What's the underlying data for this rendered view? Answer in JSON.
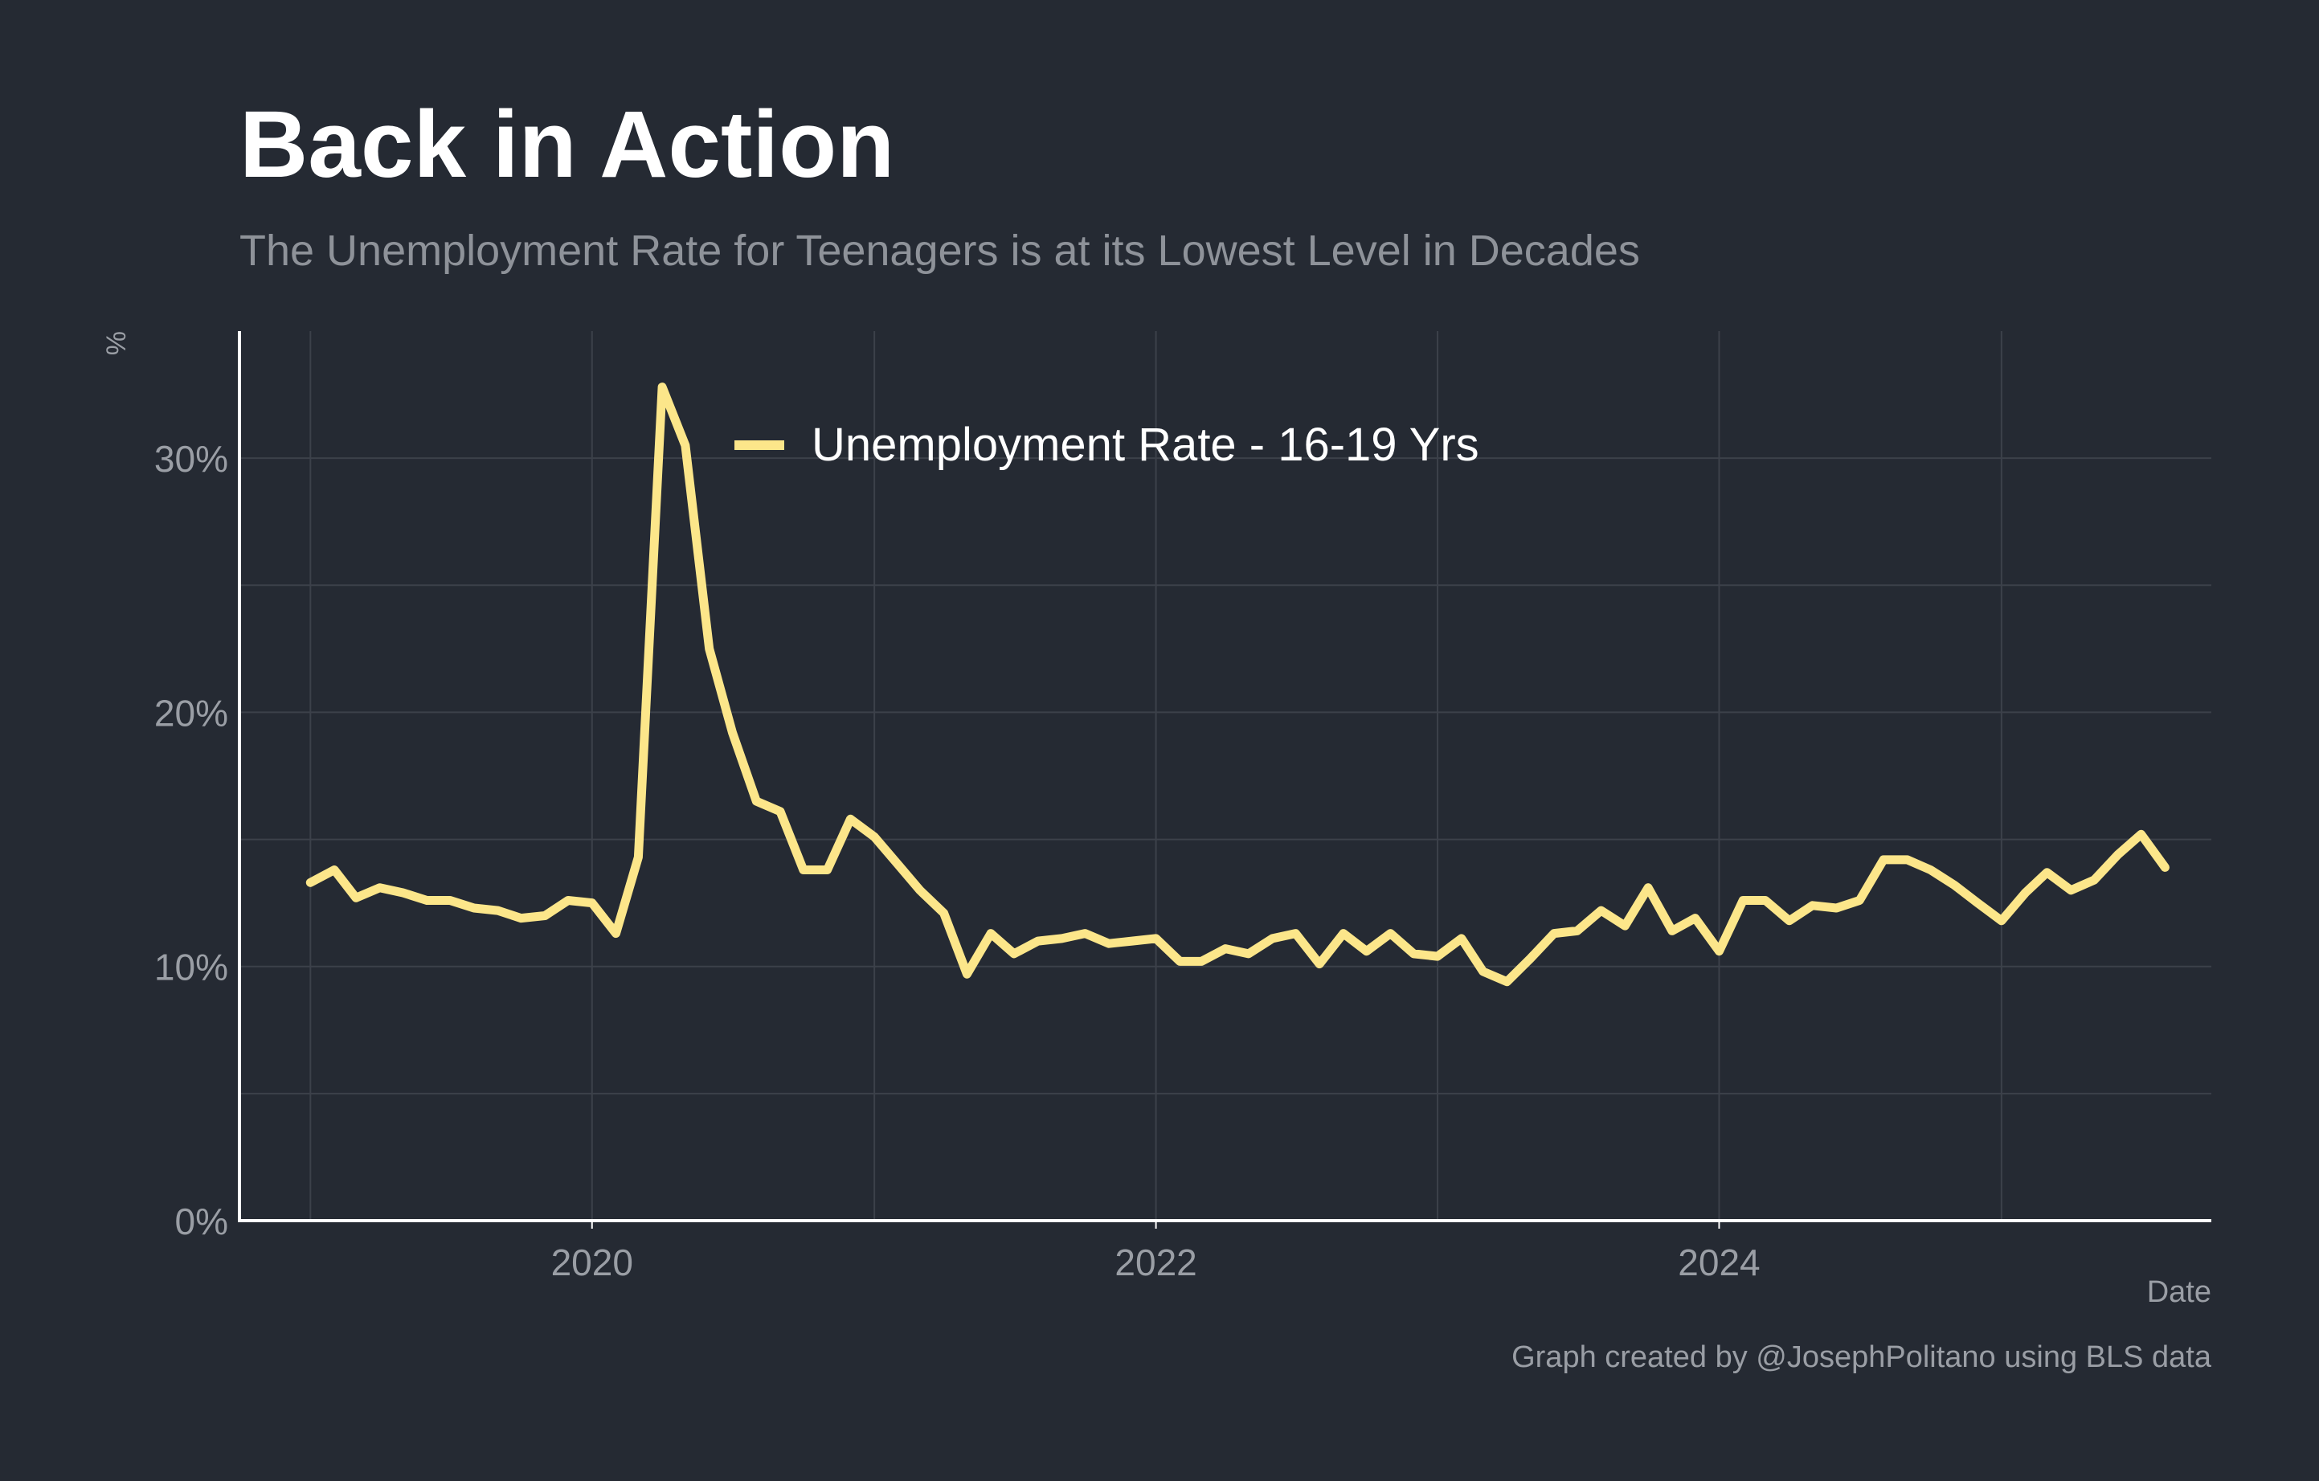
{
  "title": "Back in Action",
  "subtitle": "The Unemployment Rate for Teenagers is at its Lowest Level in Decades",
  "caption": "Graph created by @JosephPolitano using BLS data",
  "colors": {
    "background": "#252a33",
    "line": "#fce68a",
    "grid": "#3c414a",
    "axis": "#ffffff"
  },
  "chart_data": {
    "type": "line",
    "title": "Back in Action",
    "subtitle": "The Unemployment Rate for Teenagers is at its Lowest Level in Decades",
    "xlabel": "Date",
    "ylabel": "%",
    "xlim": [
      "2018-10-01",
      "2025-09-30"
    ],
    "ylim": [
      0,
      35
    ],
    "y_ticks": [
      0,
      10,
      20,
      30
    ],
    "y_tick_labels": [
      "0%",
      "10%",
      "20%",
      "30%"
    ],
    "x_ticks": [
      "2020-01-01",
      "2022-01-01",
      "2024-01-01"
    ],
    "x_tick_labels": [
      "2020",
      "2022",
      "2024"
    ],
    "grid": true,
    "legend": "inside-top",
    "series": [
      {
        "name": "Unemployment Rate - 16-19 Yrs",
        "x": [
          "2019-01",
          "2019-02",
          "2019-03",
          "2019-04",
          "2019-05",
          "2019-06",
          "2019-07",
          "2019-08",
          "2019-09",
          "2019-10",
          "2019-11",
          "2019-12",
          "2020-01",
          "2020-02",
          "2020-03",
          "2020-04",
          "2020-05",
          "2020-06",
          "2020-07",
          "2020-08",
          "2020-09",
          "2020-10",
          "2020-11",
          "2020-12",
          "2021-01",
          "2021-02",
          "2021-03",
          "2021-04",
          "2021-05",
          "2021-06",
          "2021-07",
          "2021-08",
          "2021-09",
          "2021-10",
          "2021-11",
          "2021-12",
          "2022-01",
          "2022-02",
          "2022-03",
          "2022-04",
          "2022-05",
          "2022-06",
          "2022-07",
          "2022-08",
          "2022-09",
          "2022-10",
          "2022-11",
          "2022-12",
          "2023-01",
          "2023-02",
          "2023-03",
          "2023-04",
          "2023-05",
          "2023-06",
          "2023-07",
          "2023-08",
          "2023-09",
          "2023-10",
          "2023-11",
          "2023-12",
          "2024-01",
          "2024-02",
          "2024-03",
          "2024-04",
          "2024-05",
          "2024-06",
          "2024-07",
          "2024-08",
          "2024-09",
          "2024-10",
          "2024-11",
          "2024-12",
          "2025-01",
          "2025-02",
          "2025-03",
          "2025-04",
          "2025-05",
          "2025-06",
          "2025-07",
          "2025-08"
        ],
        "values": [
          13.3,
          13.8,
          12.7,
          13.1,
          12.9,
          12.6,
          12.6,
          12.3,
          12.2,
          11.9,
          12.0,
          12.6,
          12.5,
          11.3,
          14.3,
          32.8,
          30.5,
          22.5,
          19.2,
          16.5,
          16.1,
          13.8,
          13.8,
          15.8,
          15.1,
          14.0,
          13.0,
          12.1,
          9.7,
          11.3,
          10.5,
          11.0,
          11.1,
          11.3,
          10.9,
          11.0,
          11.1,
          10.2,
          10.2,
          10.7,
          10.5,
          11.1,
          11.3,
          10.1,
          11.3,
          10.6,
          11.3,
          10.5,
          10.4,
          11.1,
          9.8,
          9.4,
          10.3,
          11.3,
          11.4,
          12.2,
          11.6,
          13.1,
          11.4,
          11.9,
          10.6,
          12.6,
          12.6,
          11.8,
          12.4,
          12.3,
          12.6,
          14.2,
          14.2,
          13.8,
          13.2,
          12.5,
          11.8,
          12.9,
          13.7,
          13.0,
          13.4,
          14.4,
          15.2,
          13.9
        ]
      }
    ]
  }
}
